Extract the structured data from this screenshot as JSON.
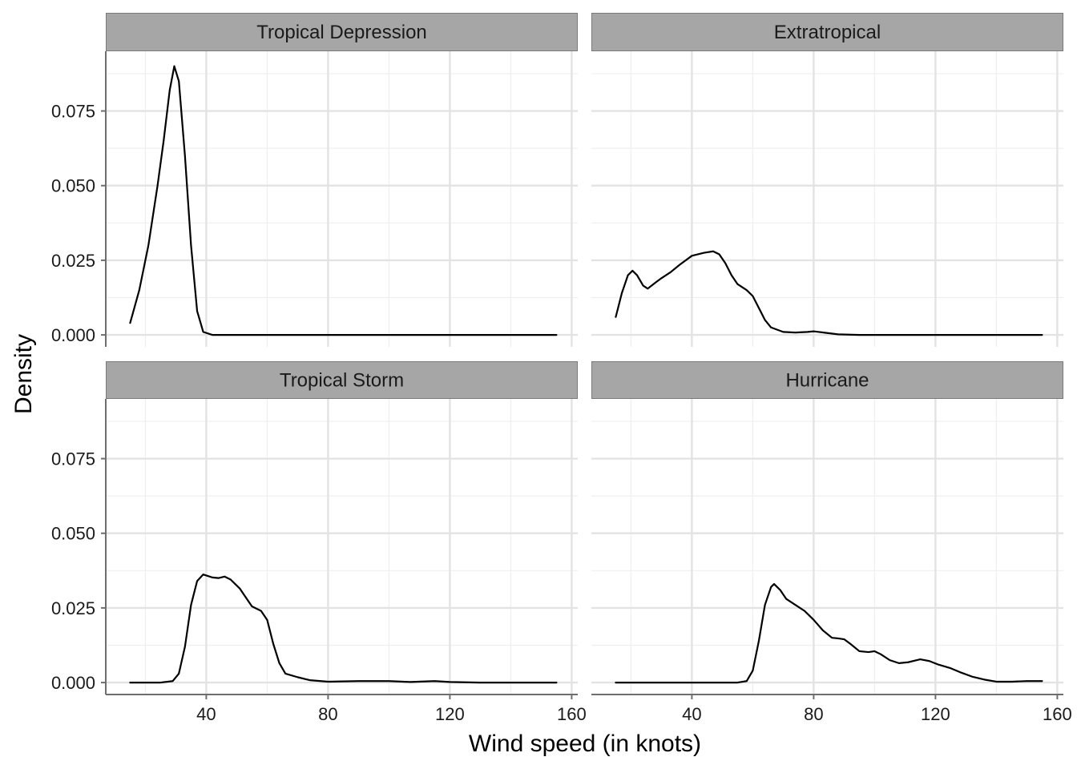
{
  "chart_data": {
    "type": "line",
    "xlabel": "Wind speed (in knots)",
    "ylabel": "Density",
    "xlim": [
      7,
      162
    ],
    "ylim": [
      -0.004,
      0.095
    ],
    "x_ticks": [
      40,
      80,
      120,
      160
    ],
    "x_tick_labels": [
      "40",
      "80",
      "120",
      "160"
    ],
    "y_ticks": [
      0.0,
      0.025,
      0.05,
      0.075
    ],
    "y_tick_labels": [
      "0.000",
      "0.025",
      "0.050",
      "0.075"
    ],
    "panels": [
      {
        "name": "Tropical Depression",
        "points": [
          [
            15,
            0.004
          ],
          [
            18,
            0.015
          ],
          [
            21,
            0.03
          ],
          [
            24,
            0.05
          ],
          [
            26,
            0.065
          ],
          [
            28,
            0.082
          ],
          [
            29.5,
            0.09
          ],
          [
            31,
            0.085
          ],
          [
            33,
            0.06
          ],
          [
            35,
            0.03
          ],
          [
            37,
            0.008
          ],
          [
            39,
            0.001
          ],
          [
            42,
            0.0
          ],
          [
            60,
            0.0
          ],
          [
            80,
            0.0
          ],
          [
            100,
            0.0
          ],
          [
            120,
            0.0
          ],
          [
            140,
            0.0
          ],
          [
            155,
            0.0
          ]
        ]
      },
      {
        "name": "Extratropical",
        "points": [
          [
            15,
            0.006
          ],
          [
            17,
            0.014
          ],
          [
            19,
            0.02
          ],
          [
            20.5,
            0.0215
          ],
          [
            22,
            0.02
          ],
          [
            24,
            0.0165
          ],
          [
            25.5,
            0.0155
          ],
          [
            28,
            0.0175
          ],
          [
            30,
            0.019
          ],
          [
            33,
            0.021
          ],
          [
            36,
            0.0235
          ],
          [
            40,
            0.0265
          ],
          [
            44,
            0.0275
          ],
          [
            47,
            0.028
          ],
          [
            49,
            0.027
          ],
          [
            51,
            0.024
          ],
          [
            53,
            0.02
          ],
          [
            55,
            0.017
          ],
          [
            58,
            0.015
          ],
          [
            60,
            0.013
          ],
          [
            62,
            0.009
          ],
          [
            64,
            0.005
          ],
          [
            66,
            0.0025
          ],
          [
            70,
            0.001
          ],
          [
            74,
            0.0008
          ],
          [
            78,
            0.001
          ],
          [
            80,
            0.0012
          ],
          [
            84,
            0.0007
          ],
          [
            88,
            0.0002
          ],
          [
            95,
            0.0
          ],
          [
            110,
            0.0
          ],
          [
            130,
            0.0
          ],
          [
            155,
            0.0
          ]
        ]
      },
      {
        "name": "Tropical Storm",
        "points": [
          [
            15,
            0.0
          ],
          [
            25,
            0.0
          ],
          [
            29,
            0.0005
          ],
          [
            31,
            0.003
          ],
          [
            33,
            0.012
          ],
          [
            35,
            0.026
          ],
          [
            37,
            0.034
          ],
          [
            39,
            0.0362
          ],
          [
            42,
            0.0352
          ],
          [
            44,
            0.035
          ],
          [
            46,
            0.0355
          ],
          [
            48,
            0.0345
          ],
          [
            51,
            0.0315
          ],
          [
            53,
            0.0285
          ],
          [
            55,
            0.0255
          ],
          [
            58,
            0.024
          ],
          [
            60,
            0.021
          ],
          [
            62,
            0.013
          ],
          [
            64,
            0.0065
          ],
          [
            66,
            0.003
          ],
          [
            70,
            0.0018
          ],
          [
            74,
            0.0008
          ],
          [
            80,
            0.0003
          ],
          [
            90,
            0.0005
          ],
          [
            100,
            0.0005
          ],
          [
            107,
            0.0002
          ],
          [
            115,
            0.0005
          ],
          [
            120,
            0.0002
          ],
          [
            130,
            0.0
          ],
          [
            155,
            0.0
          ]
        ]
      },
      {
        "name": "Hurricane",
        "points": [
          [
            15,
            0.0
          ],
          [
            40,
            0.0
          ],
          [
            55,
            0.0
          ],
          [
            58,
            0.0005
          ],
          [
            60,
            0.004
          ],
          [
            62,
            0.014
          ],
          [
            64,
            0.026
          ],
          [
            66,
            0.032
          ],
          [
            67,
            0.033
          ],
          [
            69,
            0.031
          ],
          [
            71,
            0.028
          ],
          [
            74,
            0.026
          ],
          [
            77,
            0.024
          ],
          [
            80,
            0.021
          ],
          [
            83,
            0.0175
          ],
          [
            86,
            0.015
          ],
          [
            88,
            0.0148
          ],
          [
            90,
            0.0145
          ],
          [
            92,
            0.013
          ],
          [
            95,
            0.0105
          ],
          [
            98,
            0.0102
          ],
          [
            100,
            0.0105
          ],
          [
            102,
            0.0095
          ],
          [
            105,
            0.0075
          ],
          [
            108,
            0.0065
          ],
          [
            111,
            0.0068
          ],
          [
            115,
            0.0078
          ],
          [
            118,
            0.0072
          ],
          [
            121,
            0.006
          ],
          [
            125,
            0.0048
          ],
          [
            128,
            0.0035
          ],
          [
            132,
            0.002
          ],
          [
            136,
            0.001
          ],
          [
            140,
            0.0003
          ],
          [
            145,
            0.0003
          ],
          [
            150,
            0.0005
          ],
          [
            155,
            0.0005
          ]
        ]
      }
    ]
  }
}
